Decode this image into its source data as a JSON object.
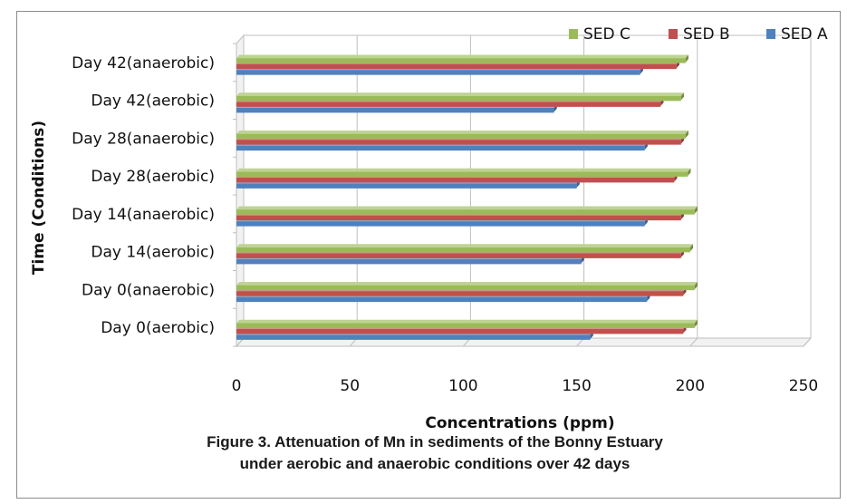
{
  "chart_data": {
    "type": "bar",
    "orientation": "horizontal",
    "style": "3d",
    "categories": [
      "Day 0(aerobic)",
      "Day 0(anaerobic)",
      "Day 14(aerobic)",
      "Day 14(anaerobic)",
      "Day 28(aerobic)",
      "Day 28(anaerobic)",
      "Day 42(aerobic)",
      "Day 42(anaerobic)"
    ],
    "series": [
      {
        "name": "SED A",
        "color": "#4f81bd",
        "values": [
          156,
          181,
          152,
          180,
          150,
          180,
          140,
          178
        ]
      },
      {
        "name": "SED B",
        "color": "#c0504d",
        "values": [
          197,
          197,
          196,
          196,
          193,
          196,
          187,
          194
        ]
      },
      {
        "name": "SED C",
        "color": "#9bbb59",
        "values": [
          202,
          202,
          200,
          202,
          199,
          198,
          196,
          198
        ]
      }
    ],
    "legend_order": [
      "SED C",
      "SED B",
      "SED A"
    ],
    "legend_position": "top-right",
    "xlabel": "Concentrations (ppm)",
    "ylabel": "Time (Conditions)",
    "xlim": [
      0,
      250
    ],
    "xticks": [
      "0",
      "50",
      "100",
      "150",
      "200",
      "250"
    ],
    "grid": true
  },
  "caption": {
    "line1": "Figure 3. Attenuation of Mn in sediments of the Bonny Estuary",
    "line2": "under aerobic and anaerobic conditions over 42 days"
  }
}
